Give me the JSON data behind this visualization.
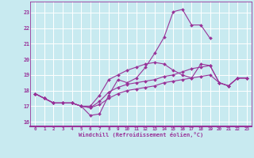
{
  "xlabel": "Windchill (Refroidissement éolien,°C)",
  "background_color": "#c8eaf0",
  "grid_color": "#ffffff",
  "line_color": "#993399",
  "xlim": [
    -0.5,
    23.5
  ],
  "ylim": [
    15.7,
    23.7
  ],
  "yticks": [
    16,
    17,
    18,
    19,
    20,
    21,
    22,
    23
  ],
  "xticks": [
    0,
    1,
    2,
    3,
    4,
    5,
    6,
    7,
    8,
    9,
    10,
    11,
    12,
    13,
    14,
    15,
    16,
    17,
    18,
    19,
    20,
    21,
    22,
    23
  ],
  "line1_x": [
    0,
    1,
    2,
    3,
    4,
    5,
    6,
    7,
    8,
    9,
    10,
    11,
    12,
    13,
    14,
    15,
    16,
    17,
    18,
    19
  ],
  "line1_y": [
    17.8,
    17.5,
    17.2,
    17.2,
    17.2,
    17.0,
    16.4,
    16.5,
    17.7,
    18.7,
    18.5,
    18.8,
    19.5,
    20.4,
    21.4,
    23.05,
    23.2,
    22.2,
    22.2,
    21.35
  ],
  "line2_x": [
    0,
    1,
    2,
    3,
    4,
    5,
    6,
    7,
    8,
    9,
    10,
    11,
    12,
    13,
    14,
    15,
    16,
    17,
    18,
    19,
    20,
    21,
    22,
    23
  ],
  "line2_y": [
    17.8,
    17.5,
    17.2,
    17.2,
    17.2,
    17.0,
    17.0,
    17.7,
    18.7,
    19.0,
    19.3,
    19.5,
    19.7,
    19.8,
    19.7,
    19.3,
    19.0,
    18.8,
    19.7,
    19.6,
    18.5,
    18.3,
    18.8,
    18.8
  ],
  "line3_x": [
    0,
    1,
    2,
    3,
    4,
    5,
    6,
    7,
    8,
    9,
    10,
    11,
    12,
    13,
    14,
    15,
    16,
    17,
    18,
    19,
    20,
    21,
    22,
    23
  ],
  "line3_y": [
    17.8,
    17.5,
    17.2,
    17.2,
    17.2,
    17.0,
    16.9,
    17.3,
    17.9,
    18.2,
    18.4,
    18.5,
    18.6,
    18.7,
    18.9,
    19.0,
    19.2,
    19.4,
    19.5,
    19.6,
    18.5,
    18.3,
    18.8,
    18.8
  ],
  "line4_x": [
    0,
    1,
    2,
    3,
    4,
    5,
    6,
    7,
    8,
    9,
    10,
    11,
    12,
    13,
    14,
    15,
    16,
    17,
    18,
    19,
    20,
    21,
    22,
    23
  ],
  "line4_y": [
    17.8,
    17.5,
    17.2,
    17.2,
    17.2,
    17.0,
    16.9,
    17.1,
    17.5,
    17.8,
    18.0,
    18.1,
    18.2,
    18.3,
    18.5,
    18.6,
    18.7,
    18.8,
    18.9,
    19.0,
    18.5,
    18.3,
    18.8,
    18.8
  ]
}
